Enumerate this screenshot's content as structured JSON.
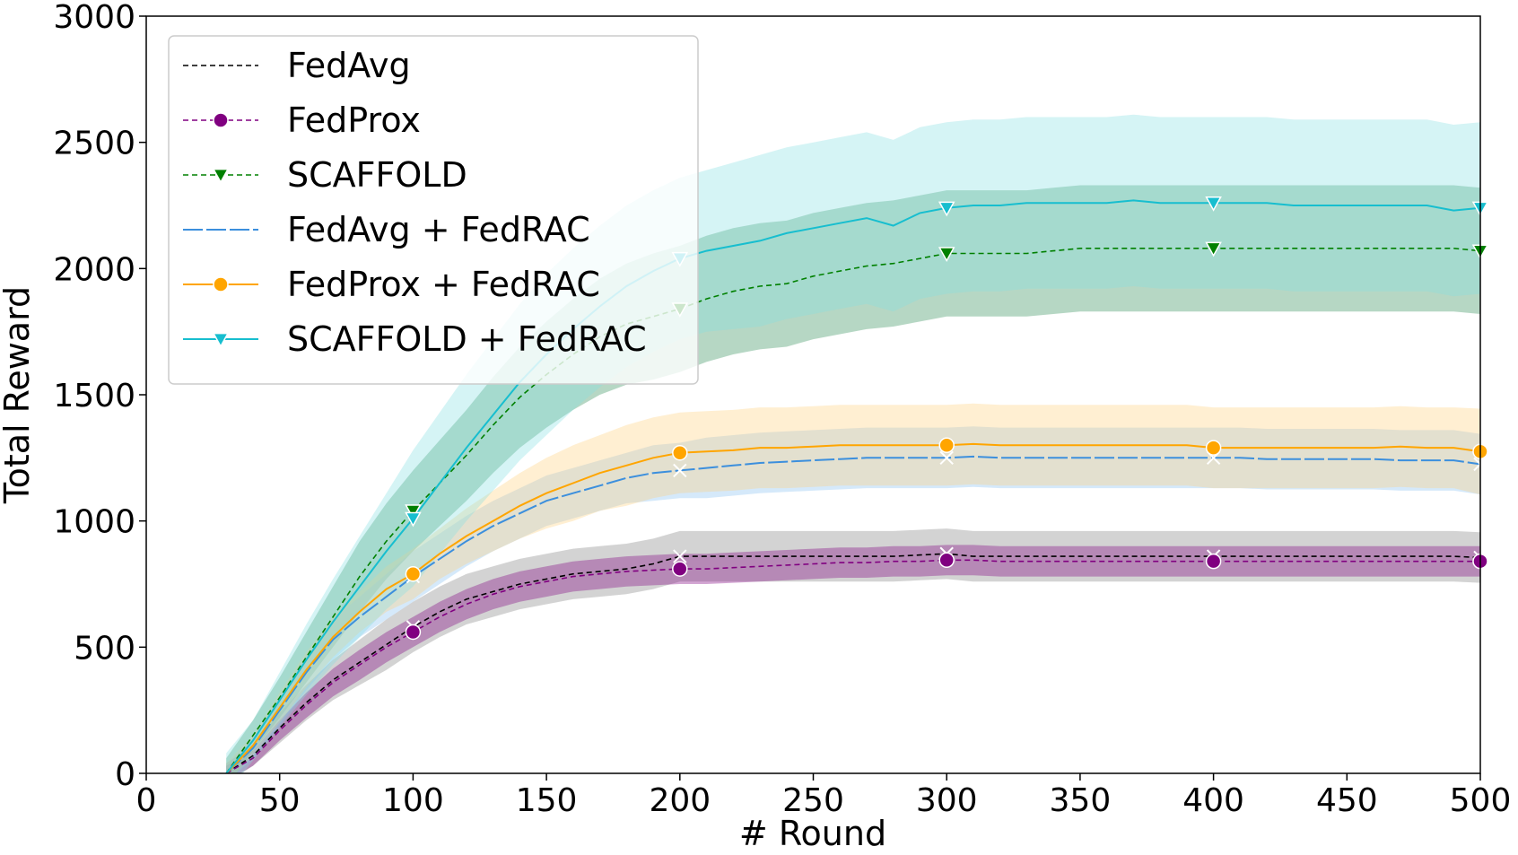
{
  "chart_data": {
    "type": "line",
    "title": "",
    "xlabel": "# Round",
    "ylabel": "Total Reward",
    "xlim": [
      0,
      500
    ],
    "ylim": [
      0,
      3000
    ],
    "xticks": [
      0,
      50,
      100,
      150,
      200,
      250,
      300,
      350,
      400,
      450,
      500
    ],
    "yticks": [
      0,
      500,
      1000,
      1500,
      2000,
      2500,
      3000
    ],
    "grid": false,
    "legend_position": "upper-left",
    "x": [
      30,
      40,
      50,
      60,
      70,
      80,
      90,
      100,
      110,
      120,
      130,
      140,
      150,
      160,
      170,
      180,
      190,
      200,
      210,
      220,
      230,
      240,
      250,
      260,
      270,
      280,
      290,
      300,
      310,
      320,
      330,
      340,
      350,
      360,
      370,
      380,
      390,
      400,
      410,
      420,
      430,
      440,
      450,
      460,
      470,
      480,
      490,
      500
    ],
    "marker_x": [
      100,
      200,
      300,
      400,
      500
    ],
    "series": [
      {
        "name": "FedAvg",
        "color": "#000000",
        "line_style": "dashed",
        "marker": "x",
        "marker_color": "#ffffff",
        "band_color": "#808080",
        "values": [
          0,
          70,
          180,
          280,
          370,
          440,
          510,
          580,
          640,
          690,
          720,
          750,
          770,
          790,
          800,
          810,
          830,
          860,
          860,
          860,
          860,
          860,
          860,
          860,
          860,
          860,
          865,
          870,
          860,
          860,
          860,
          860,
          860,
          860,
          860,
          860,
          860,
          860,
          860,
          860,
          860,
          860,
          860,
          860,
          860,
          860,
          860,
          855
        ],
        "band": [
          40,
          40,
          60,
          70,
          80,
          90,
          100,
          100,
          100,
          100,
          100,
          100,
          100,
          100,
          100,
          100,
          100,
          100,
          100,
          100,
          100,
          100,
          100,
          100,
          100,
          100,
          100,
          100,
          100,
          100,
          100,
          100,
          100,
          100,
          100,
          100,
          100,
          100,
          100,
          100,
          100,
          100,
          100,
          100,
          100,
          100,
          100,
          100
        ]
      },
      {
        "name": "FedProx",
        "color": "#800080",
        "line_style": "dashed",
        "marker": "circle",
        "marker_color": "#800080",
        "band_color": "#800080",
        "values": [
          0,
          60,
          170,
          270,
          360,
          430,
          500,
          560,
          620,
          670,
          710,
          740,
          760,
          780,
          790,
          800,
          805,
          810,
          810,
          815,
          820,
          825,
          830,
          835,
          835,
          840,
          840,
          845,
          845,
          840,
          840,
          840,
          840,
          840,
          840,
          840,
          840,
          840,
          840,
          840,
          840,
          840,
          840,
          840,
          840,
          840,
          840,
          840
        ],
        "band": [
          30,
          30,
          40,
          50,
          55,
          60,
          60,
          60,
          60,
          60,
          60,
          60,
          60,
          60,
          60,
          60,
          60,
          60,
          60,
          60,
          60,
          60,
          60,
          60,
          60,
          60,
          60,
          60,
          60,
          60,
          60,
          60,
          60,
          60,
          60,
          60,
          60,
          60,
          60,
          60,
          60,
          60,
          60,
          60,
          60,
          60,
          60,
          60
        ]
      },
      {
        "name": "SCAFFOLD",
        "color": "#008000",
        "line_style": "dashed",
        "marker": "triangle-down",
        "marker_color": "#008000",
        "band_color": "#2e8b57",
        "values": [
          0,
          150,
          300,
          460,
          620,
          780,
          920,
          1040,
          1150,
          1260,
          1380,
          1490,
          1580,
          1660,
          1730,
          1780,
          1810,
          1840,
          1880,
          1910,
          1930,
          1940,
          1970,
          1990,
          2010,
          2020,
          2040,
          2060,
          2060,
          2060,
          2060,
          2070,
          2080,
          2080,
          2080,
          2080,
          2080,
          2080,
          2080,
          2080,
          2080,
          2080,
          2080,
          2080,
          2080,
          2080,
          2080,
          2070
        ],
        "band": [
          60,
          60,
          80,
          100,
          120,
          140,
          150,
          160,
          170,
          180,
          190,
          200,
          210,
          220,
          230,
          240,
          250,
          250,
          250,
          250,
          250,
          250,
          250,
          250,
          250,
          250,
          250,
          250,
          250,
          250,
          250,
          250,
          250,
          250,
          250,
          250,
          250,
          250,
          250,
          250,
          250,
          250,
          250,
          250,
          250,
          250,
          250,
          250
        ]
      },
      {
        "name": "FedAvg + FedRAC",
        "color": "#3c8fdd",
        "line_style": "solid",
        "marker": "x",
        "marker_color": "#ffffff",
        "band_color": "#87bff0",
        "values": [
          0,
          100,
          250,
          400,
          530,
          620,
          700,
          780,
          850,
          920,
          980,
          1030,
          1080,
          1110,
          1140,
          1170,
          1190,
          1200,
          1210,
          1220,
          1230,
          1235,
          1240,
          1245,
          1250,
          1250,
          1250,
          1250,
          1255,
          1250,
          1250,
          1250,
          1250,
          1250,
          1250,
          1250,
          1250,
          1250,
          1250,
          1245,
          1245,
          1245,
          1245,
          1245,
          1240,
          1240,
          1240,
          1225
        ],
        "band": [
          40,
          40,
          60,
          70,
          80,
          80,
          90,
          100,
          100,
          100,
          100,
          100,
          100,
          100,
          100,
          100,
          110,
          110,
          120,
          120,
          120,
          120,
          120,
          120,
          120,
          120,
          120,
          120,
          120,
          120,
          120,
          120,
          120,
          120,
          120,
          120,
          120,
          120,
          120,
          120,
          120,
          120,
          120,
          120,
          120,
          120,
          120,
          120
        ]
      },
      {
        "name": "FedProx + FedRAC",
        "color": "#ffa500",
        "line_style": "solid",
        "marker": "circle",
        "marker_color": "#ffa500",
        "band_color": "#ffd27f",
        "values": [
          0,
          110,
          260,
          410,
          540,
          640,
          730,
          790,
          870,
          940,
          1000,
          1060,
          1110,
          1150,
          1190,
          1220,
          1250,
          1270,
          1275,
          1280,
          1290,
          1290,
          1295,
          1300,
          1300,
          1300,
          1300,
          1300,
          1305,
          1300,
          1300,
          1300,
          1300,
          1300,
          1300,
          1300,
          1300,
          1290,
          1290,
          1290,
          1290,
          1290,
          1290,
          1290,
          1295,
          1290,
          1290,
          1275
        ],
        "band": [
          40,
          40,
          60,
          70,
          80,
          80,
          90,
          100,
          100,
          110,
          120,
          130,
          140,
          150,
          150,
          160,
          160,
          160,
          160,
          160,
          160,
          160,
          160,
          160,
          160,
          160,
          160,
          160,
          160,
          160,
          160,
          160,
          160,
          160,
          160,
          160,
          160,
          160,
          160,
          160,
          160,
          160,
          160,
          160,
          160,
          160,
          160,
          170
        ]
      },
      {
        "name": "SCAFFOLD + FedRAC",
        "color": "#17becf",
        "line_style": "solid",
        "marker": "triangle-down",
        "marker_color": "#17becf",
        "band_color": "#86e0e3",
        "values": [
          0,
          130,
          290,
          450,
          600,
          740,
          880,
          1010,
          1150,
          1290,
          1420,
          1550,
          1660,
          1760,
          1850,
          1930,
          1990,
          2040,
          2070,
          2090,
          2110,
          2140,
          2160,
          2180,
          2200,
          2170,
          2220,
          2240,
          2250,
          2250,
          2260,
          2260,
          2260,
          2260,
          2270,
          2260,
          2260,
          2260,
          2260,
          2260,
          2250,
          2250,
          2250,
          2250,
          2250,
          2250,
          2230,
          2240
        ],
        "band": [
          80,
          80,
          110,
          140,
          170,
          200,
          230,
          270,
          280,
          290,
          300,
          310,
          320,
          320,
          320,
          320,
          320,
          320,
          320,
          330,
          340,
          340,
          340,
          340,
          340,
          340,
          340,
          340,
          340,
          340,
          340,
          340,
          340,
          340,
          340,
          340,
          340,
          340,
          340,
          340,
          340,
          340,
          340,
          340,
          340,
          340,
          340,
          340
        ]
      }
    ]
  }
}
